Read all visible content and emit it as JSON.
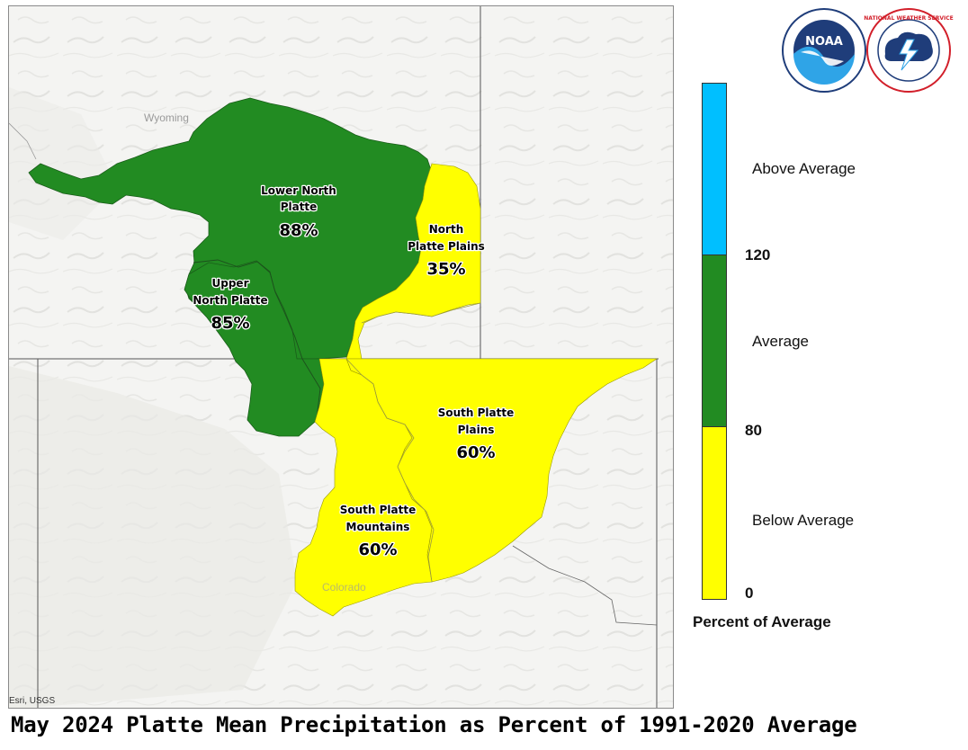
{
  "map": {
    "state_labels": [
      "Wyoming",
      "Colorado"
    ],
    "attribution": "Esri, USGS",
    "basins": [
      {
        "name_lines": [
          "Lower North",
          "Platte"
        ],
        "percent": "88%",
        "color": "#228b22"
      },
      {
        "name_lines": [
          "Upper",
          "North Platte"
        ],
        "percent": "85%",
        "color": "#228b22"
      },
      {
        "name_lines": [
          "North",
          "Platte Plains"
        ],
        "percent": "35%",
        "color": "#ffff00"
      },
      {
        "name_lines": [
          "South Platte",
          "Plains"
        ],
        "percent": "60%",
        "color": "#ffff00"
      },
      {
        "name_lines": [
          "South Platte",
          "Mountains"
        ],
        "percent": "60%",
        "color": "#ffff00"
      }
    ]
  },
  "legend": {
    "title": "Percent of Average",
    "classes": [
      {
        "label": "Above Average",
        "color": "#00bfff"
      },
      {
        "label": "Average",
        "color": "#228b22"
      },
      {
        "label": "Below Average",
        "color": "#ffff00"
      }
    ],
    "ticks": [
      "120",
      "80",
      "0"
    ]
  },
  "logos": {
    "noaa_text": "NOAA",
    "nws_text": "NATIONAL WEATHER SERVICE"
  },
  "title": "May 2024 Platte Mean Precipitation as Percent of 1991-2020 Average"
}
